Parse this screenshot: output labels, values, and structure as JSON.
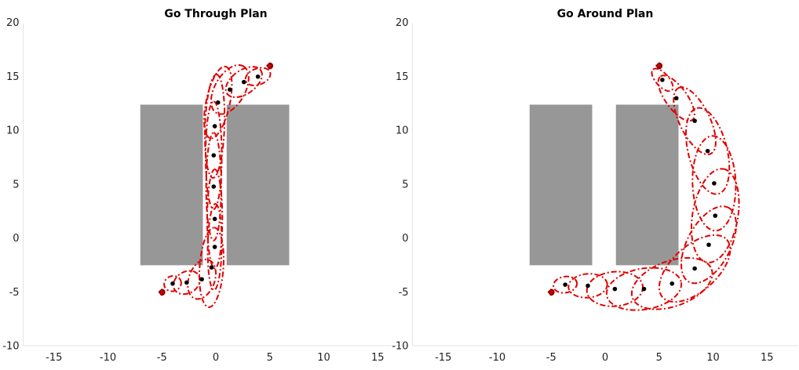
{
  "chart_data": [
    {
      "type": "scatter",
      "title": "Go Through Plan",
      "xlim": [
        -18,
        18
      ],
      "ylim": [
        -10,
        20
      ],
      "xticks": [
        -15,
        -10,
        -5,
        0,
        5,
        10,
        15
      ],
      "yticks": [
        -10,
        -5,
        0,
        5,
        10,
        15,
        20
      ],
      "obstacles": [
        {
          "x0": -7,
          "x1": -1.2,
          "y0": -2.5,
          "y1": 12.4
        },
        {
          "x0": 1,
          "x1": 6.8,
          "y0": -2.5,
          "y1": 12.4
        }
      ],
      "endpoints": [
        {
          "x": -5,
          "y": -5
        },
        {
          "x": 5,
          "y": 16
        }
      ],
      "points": [
        {
          "x": -4,
          "y": -4.2
        },
        {
          "x": -2.7,
          "y": -4.1
        },
        {
          "x": -1.3,
          "y": -3.8
        },
        {
          "x": -0.4,
          "y": -2.7
        },
        {
          "x": -0.1,
          "y": -0.8
        },
        {
          "x": -0.1,
          "y": 1.8
        },
        {
          "x": -0.2,
          "y": 4.8
        },
        {
          "x": -0.2,
          "y": 7.7
        },
        {
          "x": -0.1,
          "y": 10.4
        },
        {
          "x": 0.2,
          "y": 12.6
        },
        {
          "x": 1.3,
          "y": 13.8
        },
        {
          "x": 2.6,
          "y": 14.5
        },
        {
          "x": 3.9,
          "y": 15
        }
      ],
      "ellipses": [
        {
          "cx": -5,
          "cy": -5,
          "rx": 0.25,
          "ry": 0.25,
          "angle": 0
        },
        {
          "cx": -4,
          "cy": -4.2,
          "rx": 0.8,
          "ry": 0.7,
          "angle": 20
        },
        {
          "cx": -2.7,
          "cy": -4.1,
          "rx": 1.3,
          "ry": 1.0,
          "angle": 30
        },
        {
          "cx": -1.3,
          "cy": -3.8,
          "rx": 1.9,
          "ry": 1.2,
          "angle": 70
        },
        {
          "cx": -0.4,
          "cy": -2.7,
          "rx": 3.7,
          "ry": 1.1,
          "angle": 86
        },
        {
          "cx": -0.1,
          "cy": -0.8,
          "rx": 4.0,
          "ry": 0.65,
          "angle": 89
        },
        {
          "cx": -0.1,
          "cy": 1.8,
          "rx": 4.6,
          "ry": 0.7,
          "angle": 90
        },
        {
          "cx": -0.2,
          "cy": 4.8,
          "rx": 5.0,
          "ry": 0.7,
          "angle": 90
        },
        {
          "cx": -0.2,
          "cy": 7.7,
          "rx": 5.0,
          "ry": 0.75,
          "angle": 90
        },
        {
          "cx": -0.1,
          "cy": 10.4,
          "rx": 4.8,
          "ry": 0.9,
          "angle": 88
        },
        {
          "cx": 0.2,
          "cy": 12.6,
          "rx": 3.4,
          "ry": 1.1,
          "angle": 78
        },
        {
          "cx": 1.3,
          "cy": 13.8,
          "rx": 2.5,
          "ry": 1.4,
          "angle": 60
        },
        {
          "cx": 2.6,
          "cy": 14.5,
          "rx": 1.9,
          "ry": 1.1,
          "angle": 35
        },
        {
          "cx": 3.9,
          "cy": 15,
          "rx": 1.2,
          "ry": 0.75,
          "angle": 20
        },
        {
          "cx": 5,
          "cy": 16,
          "rx": 0.25,
          "ry": 0.25,
          "angle": 0
        }
      ]
    },
    {
      "type": "scatter",
      "title": "Go Around Plan",
      "xlim": [
        -18,
        18
      ],
      "ylim": [
        -10,
        20
      ],
      "xticks": [
        -15,
        -10,
        -5,
        0,
        5,
        10,
        15
      ],
      "yticks": [
        -10,
        -5,
        0,
        5,
        10,
        15,
        20
      ],
      "obstacles": [
        {
          "x0": -7,
          "x1": -1.2,
          "y0": -2.5,
          "y1": 12.4
        },
        {
          "x0": 1,
          "x1": 6.8,
          "y0": -2.5,
          "y1": 12.4
        }
      ],
      "endpoints": [
        {
          "x": -5,
          "y": -5
        },
        {
          "x": 5,
          "y": 16
        }
      ],
      "points": [
        {
          "x": -3.7,
          "y": -4.3
        },
        {
          "x": -1.6,
          "y": -4.4
        },
        {
          "x": 0.9,
          "y": -4.7
        },
        {
          "x": 3.6,
          "y": -4.7
        },
        {
          "x": 6.2,
          "y": -4.2
        },
        {
          "x": 8.3,
          "y": -2.8
        },
        {
          "x": 9.6,
          "y": -0.6
        },
        {
          "x": 10.2,
          "y": 2.1
        },
        {
          "x": 10.1,
          "y": 5.1
        },
        {
          "x": 9.5,
          "y": 8.1
        },
        {
          "x": 8.3,
          "y": 10.9
        },
        {
          "x": 6.6,
          "y": 13
        },
        {
          "x": 5.3,
          "y": 14.7
        }
      ],
      "ellipses": [
        {
          "cx": -5,
          "cy": -5,
          "rx": 0.25,
          "ry": 0.25,
          "angle": 0
        },
        {
          "cx": -3.7,
          "cy": -4.3,
          "rx": 1.1,
          "ry": 0.75,
          "angle": 10
        },
        {
          "cx": -1.6,
          "cy": -4.4,
          "rx": 1.8,
          "ry": 1.1,
          "angle": 5
        },
        {
          "cx": 0.9,
          "cy": -4.7,
          "rx": 2.6,
          "ry": 1.6,
          "angle": 5
        },
        {
          "cx": 3.6,
          "cy": -4.7,
          "rx": 3.5,
          "ry": 1.9,
          "angle": 10
        },
        {
          "cx": 6.2,
          "cy": -4.2,
          "rx": 3.9,
          "ry": 2.1,
          "angle": 20
        },
        {
          "cx": 8.3,
          "cy": -2.8,
          "rx": 4.0,
          "ry": 2.1,
          "angle": 42
        },
        {
          "cx": 9.6,
          "cy": -0.6,
          "rx": 3.9,
          "ry": 2.0,
          "angle": 62
        },
        {
          "cx": 10.2,
          "cy": 2.1,
          "rx": 4.4,
          "ry": 2.1,
          "angle": 80
        },
        {
          "cx": 10.1,
          "cy": 5.1,
          "rx": 4.4,
          "ry": 2.0,
          "angle": 92
        },
        {
          "cx": 9.5,
          "cy": 8.1,
          "rx": 4.1,
          "ry": 1.8,
          "angle": 104
        },
        {
          "cx": 8.3,
          "cy": 10.9,
          "rx": 3.4,
          "ry": 1.4,
          "angle": 116
        },
        {
          "cx": 6.6,
          "cy": 13,
          "rx": 2.5,
          "ry": 1.0,
          "angle": 126
        },
        {
          "cx": 5.3,
          "cy": 14.7,
          "rx": 1.3,
          "ry": 0.6,
          "angle": 132
        },
        {
          "cx": 5,
          "cy": 16,
          "rx": 0.25,
          "ry": 0.25,
          "angle": 0
        }
      ]
    }
  ]
}
